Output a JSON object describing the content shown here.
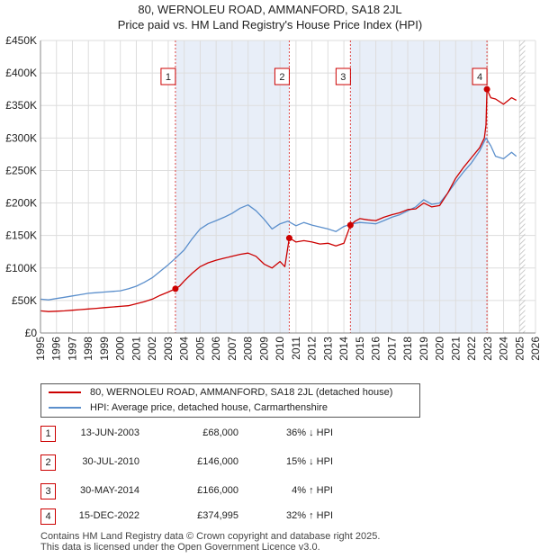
{
  "title_line1": "80, WERNOLEU ROAD, AMMANFORD, SA18 2JL",
  "title_line2": "Price paid vs. HM Land Registry's House Price Index (HPI)",
  "colors": {
    "property": "#cc0000",
    "hpi": "#5b8fcc",
    "shade": "#e8eef8",
    "marker_line": "#dd4444",
    "grid": "#dddddd"
  },
  "chart_data": {
    "type": "line",
    "title": "80, WERNOLEU ROAD, AMMANFORD, SA18 2JL — Price paid vs. HM Land Registry's House Price Index (HPI)",
    "xlim": [
      1995,
      2026
    ],
    "ylim": [
      0,
      450000
    ],
    "y_ticks": [
      0,
      50000,
      100000,
      150000,
      200000,
      250000,
      300000,
      350000,
      400000,
      450000
    ],
    "y_tick_labels": [
      "£0",
      "£50K",
      "£100K",
      "£150K",
      "£200K",
      "£250K",
      "£300K",
      "£350K",
      "£400K",
      "£450K"
    ],
    "x_ticks": [
      1995,
      1996,
      1997,
      1998,
      1999,
      2000,
      2001,
      2002,
      2003,
      2004,
      2005,
      2006,
      2007,
      2008,
      2009,
      2010,
      2011,
      2012,
      2013,
      2014,
      2015,
      2016,
      2017,
      2018,
      2019,
      2020,
      2021,
      2022,
      2023,
      2024,
      2025,
      2026
    ],
    "x_tick_labels": [
      "1995",
      "1996",
      "1997",
      "1998",
      "1999",
      "2000",
      "2001",
      "2002",
      "2003",
      "2004",
      "2005",
      "2006",
      "2007",
      "2008",
      "2009",
      "2010",
      "2011",
      "2012",
      "2013",
      "2014",
      "2015",
      "2016",
      "2017",
      "2018",
      "2019",
      "2020",
      "2021",
      "2022",
      "2023",
      "2024",
      "2025",
      "2026"
    ],
    "projection_start": 2025.0,
    "series": [
      {
        "name": "80, WERNOLEU ROAD, AMMANFORD, SA18 2JL (detached house)",
        "x": [
          1995.0,
          1995.5,
          1996.0,
          1996.5,
          1997.0,
          1997.5,
          1998.0,
          1998.5,
          1999.0,
          1999.5,
          2000.0,
          2000.5,
          2001.0,
          2001.5,
          2002.0,
          2002.5,
          2003.0,
          2003.45,
          2003.7,
          2004.0,
          2004.5,
          2005.0,
          2005.5,
          2006.0,
          2006.5,
          2007.0,
          2007.5,
          2008.0,
          2008.5,
          2009.0,
          2009.5,
          2010.0,
          2010.3,
          2010.58,
          2010.8,
          2011.0,
          2011.5,
          2012.0,
          2012.5,
          2013.0,
          2013.5,
          2014.0,
          2014.41,
          2014.7,
          2015.0,
          2015.5,
          2016.0,
          2016.5,
          2017.0,
          2017.5,
          2018.0,
          2018.5,
          2019.0,
          2019.5,
          2020.0,
          2020.5,
          2021.0,
          2021.5,
          2022.0,
          2022.5,
          2022.8,
          2022.9,
          2022.96,
          2023.2,
          2023.5,
          2024.0,
          2024.5,
          2024.8
        ],
        "y": [
          34000,
          33000,
          33500,
          34000,
          35000,
          36000,
          37000,
          38000,
          39000,
          40000,
          41000,
          42000,
          45000,
          48000,
          52000,
          58000,
          63000,
          68000,
          72000,
          80000,
          92000,
          102000,
          108000,
          112000,
          115000,
          118000,
          121000,
          123000,
          118000,
          106000,
          100000,
          110000,
          102000,
          146000,
          143000,
          140000,
          142000,
          140000,
          137000,
          138000,
          134000,
          138000,
          166000,
          172000,
          176000,
          174000,
          173000,
          178000,
          182000,
          185000,
          190000,
          191000,
          200000,
          194000,
          196000,
          215000,
          238000,
          255000,
          270000,
          285000,
          300000,
          320000,
          374995,
          362000,
          360000,
          352000,
          362000,
          358000
        ]
      },
      {
        "name": "HPI: Average price, detached house, Carmarthenshire",
        "x": [
          1995.0,
          1995.5,
          1996.0,
          1996.5,
          1997.0,
          1997.5,
          1998.0,
          1998.5,
          1999.0,
          1999.5,
          2000.0,
          2000.5,
          2001.0,
          2001.5,
          2002.0,
          2002.5,
          2003.0,
          2003.5,
          2004.0,
          2004.5,
          2005.0,
          2005.5,
          2006.0,
          2006.5,
          2007.0,
          2007.5,
          2008.0,
          2008.5,
          2009.0,
          2009.5,
          2010.0,
          2010.5,
          2011.0,
          2011.5,
          2012.0,
          2012.5,
          2013.0,
          2013.5,
          2014.0,
          2014.5,
          2015.0,
          2015.5,
          2016.0,
          2016.5,
          2017.0,
          2017.5,
          2018.0,
          2018.5,
          2019.0,
          2019.5,
          2020.0,
          2020.5,
          2021.0,
          2021.5,
          2022.0,
          2022.5,
          2022.9,
          2023.2,
          2023.5,
          2024.0,
          2024.5,
          2024.8
        ],
        "y": [
          52000,
          51000,
          53000,
          55000,
          57000,
          59000,
          61000,
          62000,
          63000,
          64000,
          65000,
          68000,
          72000,
          78000,
          85000,
          95000,
          105000,
          116000,
          128000,
          145000,
          160000,
          168000,
          173000,
          178000,
          184000,
          192000,
          197000,
          188000,
          175000,
          160000,
          168000,
          172000,
          165000,
          170000,
          166000,
          163000,
          160000,
          156000,
          164000,
          168000,
          170000,
          169000,
          168000,
          173000,
          178000,
          182000,
          188000,
          194000,
          205000,
          198000,
          200000,
          215000,
          232000,
          248000,
          262000,
          280000,
          300000,
          288000,
          272000,
          268000,
          278000,
          272000
        ]
      }
    ],
    "sales": [
      {
        "id": "1",
        "x": 2003.45,
        "y": 68000
      },
      {
        "id": "2",
        "x": 2010.58,
        "y": 146000
      },
      {
        "id": "3",
        "x": 2014.41,
        "y": 166000
      },
      {
        "id": "4",
        "x": 2022.96,
        "y": 374995
      }
    ],
    "shaded_ranges": [
      [
        2003.45,
        2010.58
      ],
      [
        2014.41,
        2022.96
      ]
    ]
  },
  "legend": {
    "property_label": "80, WERNOLEU ROAD, AMMANFORD, SA18 2JL (detached house)",
    "hpi_label": "HPI: Average price, detached house, Carmarthenshire"
  },
  "sales_table": [
    {
      "id": "1",
      "date": "13-JUN-2003",
      "price": "£68,000",
      "hpi": "36% ↓ HPI"
    },
    {
      "id": "2",
      "date": "30-JUL-2010",
      "price": "£146,000",
      "hpi": "15% ↓ HPI"
    },
    {
      "id": "3",
      "date": "30-MAY-2014",
      "price": "£166,000",
      "hpi": "4% ↑ HPI"
    },
    {
      "id": "4",
      "date": "15-DEC-2022",
      "price": "£374,995",
      "hpi": "32% ↑ HPI"
    }
  ],
  "footer": {
    "line1": "Contains HM Land Registry data © Crown copyright and database right 2025.",
    "line2": "This data is licensed under the Open Government Licence v3.0."
  }
}
